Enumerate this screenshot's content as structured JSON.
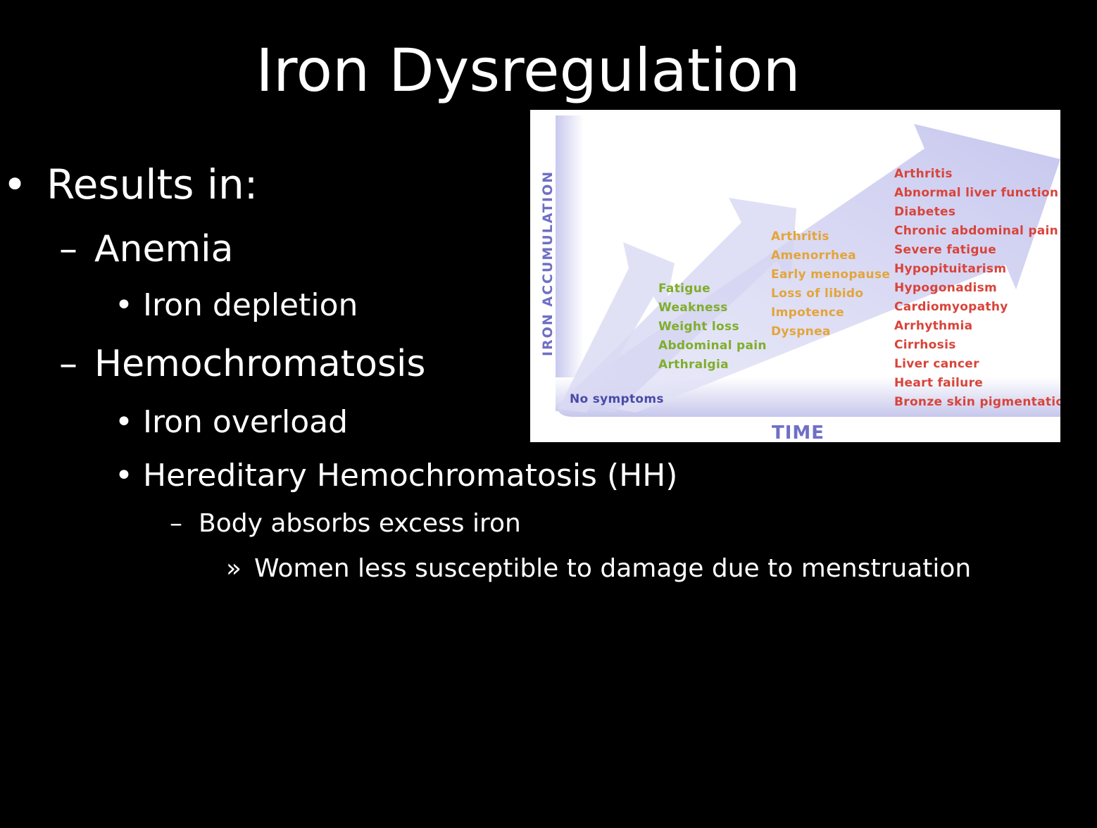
{
  "slide": {
    "title": "Iron Dysregulation",
    "bullets": {
      "results": {
        "marker": "•",
        "text": "Results in:"
      },
      "anemia": {
        "marker": "–",
        "text": "Anemia"
      },
      "iron_depletion": {
        "marker": "•",
        "text": "Iron depletion"
      },
      "hemochromatosis": {
        "marker": "–",
        "text": "Hemochromatosis"
      },
      "iron_overload": {
        "marker": "•",
        "text": "Iron overload"
      },
      "hh": {
        "marker": "•",
        "text": "Hereditary Hemochromatosis (HH)"
      },
      "absorbs": {
        "marker": "–",
        "text": "Body absorbs excess iron"
      },
      "women": {
        "marker": "»",
        "text": "Women less susceptible to damage due to menstruation"
      }
    }
  },
  "figure": {
    "y_axis_label": "IRON ACCUMULATION",
    "x_axis_label": "TIME",
    "stage0": {
      "items": [
        "No symptoms"
      ],
      "color": "#4a4aa8"
    },
    "stage1": {
      "items": [
        "Fatigue",
        "Weakness",
        "Weight loss",
        "Abdominal pain",
        "Arthralgia"
      ],
      "color": "#7fae2a"
    },
    "stage2": {
      "items": [
        "Arthritis",
        "Amenorrhea",
        "Early menopause",
        "Loss of libido",
        "Impotence",
        "Dyspnea"
      ],
      "color": "#e3a53a"
    },
    "stage3": {
      "items": [
        "Arthritis",
        "Abnormal liver function",
        "Diabetes",
        "Chronic abdominal pain",
        "Severe fatigue",
        "Hypopituitarism",
        "Hypogonadism",
        "Cardiomyopathy",
        "Arrhythmia",
        "Cirrhosis",
        "Liver cancer",
        "Heart failure",
        "Bronze skin pigmentation"
      ],
      "color": "#d8443a"
    },
    "accent_color": "#6f6fc6"
  }
}
